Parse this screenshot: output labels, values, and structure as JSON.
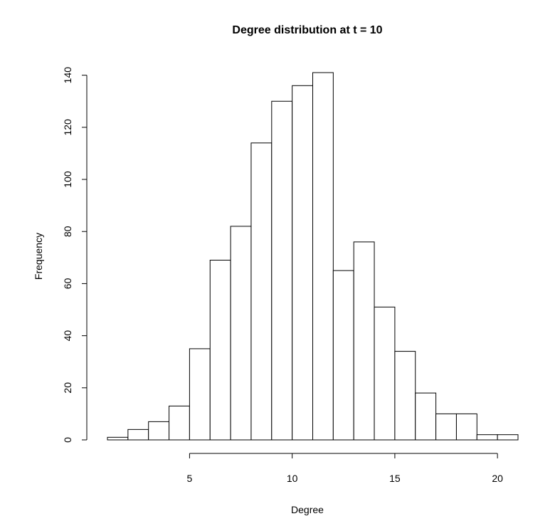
{
  "chart_data": {
    "type": "bar",
    "title": "Degree distribution at t = 10",
    "xlabel": "Degree",
    "ylabel": "Frequency",
    "bins": [
      {
        "start": 1,
        "end": 2,
        "value": 1
      },
      {
        "start": 2,
        "end": 3,
        "value": 4
      },
      {
        "start": 3,
        "end": 4,
        "value": 7
      },
      {
        "start": 4,
        "end": 5,
        "value": 13
      },
      {
        "start": 5,
        "end": 6,
        "value": 35
      },
      {
        "start": 6,
        "end": 7,
        "value": 69
      },
      {
        "start": 7,
        "end": 8,
        "value": 82
      },
      {
        "start": 8,
        "end": 9,
        "value": 114
      },
      {
        "start": 9,
        "end": 10,
        "value": 130
      },
      {
        "start": 10,
        "end": 11,
        "value": 136
      },
      {
        "start": 11,
        "end": 12,
        "value": 141
      },
      {
        "start": 12,
        "end": 13,
        "value": 65
      },
      {
        "start": 13,
        "end": 14,
        "value": 76
      },
      {
        "start": 14,
        "end": 15,
        "value": 51
      },
      {
        "start": 15,
        "end": 16,
        "value": 34
      },
      {
        "start": 16,
        "end": 17,
        "value": 18
      },
      {
        "start": 17,
        "end": 18,
        "value": 10
      },
      {
        "start": 18,
        "end": 19,
        "value": 10
      },
      {
        "start": 19,
        "end": 20,
        "value": 2
      },
      {
        "start": 20,
        "end": 21,
        "value": 2
      }
    ],
    "xticks": [
      5,
      10,
      15,
      20
    ],
    "yticks": [
      0,
      20,
      40,
      60,
      80,
      100,
      120,
      140
    ],
    "xlim": [
      1,
      21
    ],
    "ylim": [
      0,
      141
    ],
    "grid": false,
    "bar_fill": "#ffffff",
    "bar_stroke": "#000000"
  }
}
